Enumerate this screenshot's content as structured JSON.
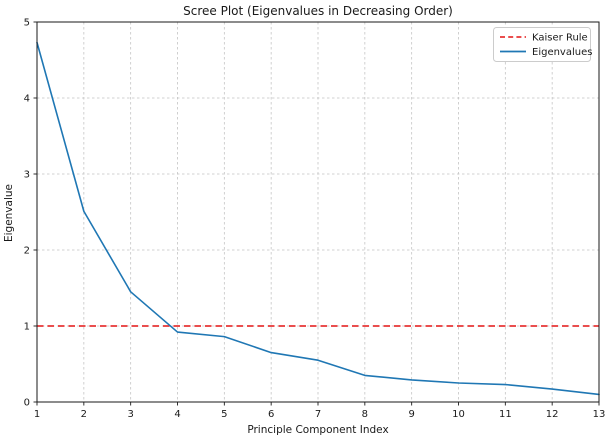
{
  "chart_data": {
    "type": "line",
    "title": "Scree Plot (Eigenvalues in Decreasing Order)",
    "xlabel": "Principle Component Index",
    "ylabel": "Eigenvalue",
    "x": [
      1,
      2,
      3,
      4,
      5,
      6,
      7,
      8,
      9,
      10,
      11,
      12,
      13
    ],
    "series": [
      {
        "name": "Kaiser Rule",
        "type": "hline",
        "y": 1.0,
        "color": "#e83535",
        "linestyle": "dashed"
      },
      {
        "name": "Eigenvalues",
        "type": "line",
        "values": [
          4.73,
          2.51,
          1.45,
          0.92,
          0.86,
          0.65,
          0.55,
          0.35,
          0.29,
          0.25,
          0.23,
          0.17,
          0.1
        ],
        "color": "#1f77b4",
        "linestyle": "solid"
      }
    ],
    "xlim": [
      1,
      13
    ],
    "ylim": [
      0,
      5
    ],
    "xticks": [
      1,
      2,
      3,
      4,
      5,
      6,
      7,
      8,
      9,
      10,
      11,
      12,
      13
    ],
    "yticks": [
      0,
      1,
      2,
      3,
      4,
      5
    ],
    "grid": true,
    "grid_style": "dashed",
    "background": "#ffffff",
    "legend": {
      "position": "upper right",
      "entries": [
        "Kaiser Rule",
        "Eigenvalues"
      ]
    }
  }
}
